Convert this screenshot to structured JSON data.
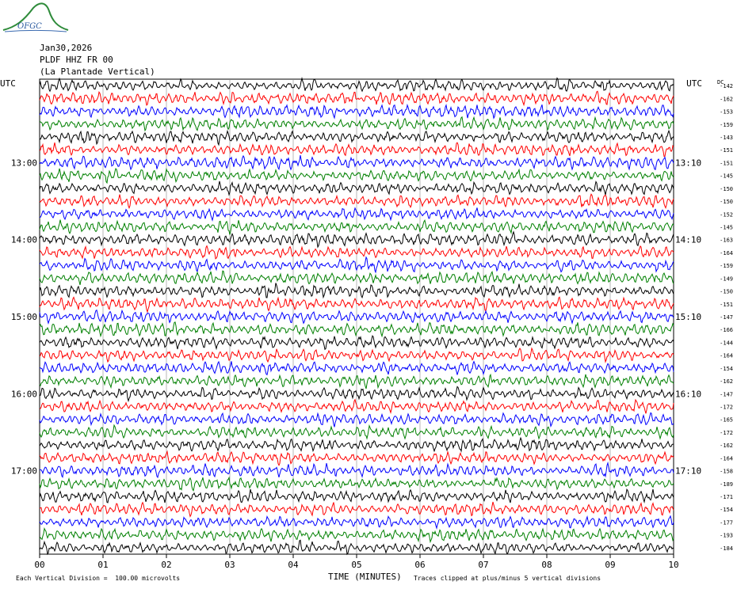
{
  "header": {
    "date": "Jan30,2026",
    "station": "PLDF HHZ FR 00",
    "station_name": "(La Plantade Vertical)",
    "logo_text": "OFGC"
  },
  "footer": {
    "left_note": "Each Vertical Division =  100.00 microvolts",
    "right_note": "Traces clipped at plus/minus 5 vertical divisions",
    "x_axis_title": "TIME (MINUTES)"
  },
  "chart_data": {
    "type": "line",
    "title": "PLDF HHZ FR 00 (La Plantade Vertical)",
    "xlabel": "TIME (MINUTES)",
    "xlim": [
      0,
      10
    ],
    "x_ticks": [
      "00",
      "01",
      "02",
      "03",
      "04",
      "05",
      "06",
      "07",
      "08",
      "09",
      "10"
    ],
    "left_axis_label": "UTC",
    "right_axis_label": "UTC",
    "left_time_labels": [
      {
        "label": "13:00",
        "row": 6
      },
      {
        "label": "14:00",
        "row": 12
      },
      {
        "label": "15:00",
        "row": 18
      },
      {
        "label": "16:00",
        "row": 24
      },
      {
        "label": "17:00",
        "row": 30
      }
    ],
    "right_time_labels": [
      {
        "label": "13:10",
        "row": 6
      },
      {
        "label": "14:10",
        "row": 12
      },
      {
        "label": "15:10",
        "row": 18
      },
      {
        "label": "16:10",
        "row": 24
      },
      {
        "label": "17:10",
        "row": 30
      }
    ],
    "right_column_header": "DC",
    "dc_offsets": [
      -142,
      -162,
      -153,
      -159,
      -143,
      -151,
      -151,
      -145,
      -150,
      -150,
      -152,
      -145,
      -163,
      -164,
      -159,
      -149,
      -150,
      -151,
      -147,
      -166,
      -144,
      -164,
      -154,
      -162,
      -147,
      -172,
      -165,
      -172,
      -162,
      -164,
      -158,
      -189,
      -171,
      -154,
      -177,
      -193,
      -184
    ],
    "trace_colors": [
      "#000000",
      "#ff0000",
      "#0000ff",
      "#008000"
    ],
    "row_count": 37,
    "scale": "100.00 microvolts per vertical division",
    "clip": "plus/minus 5 vertical divisions",
    "grid": true
  }
}
